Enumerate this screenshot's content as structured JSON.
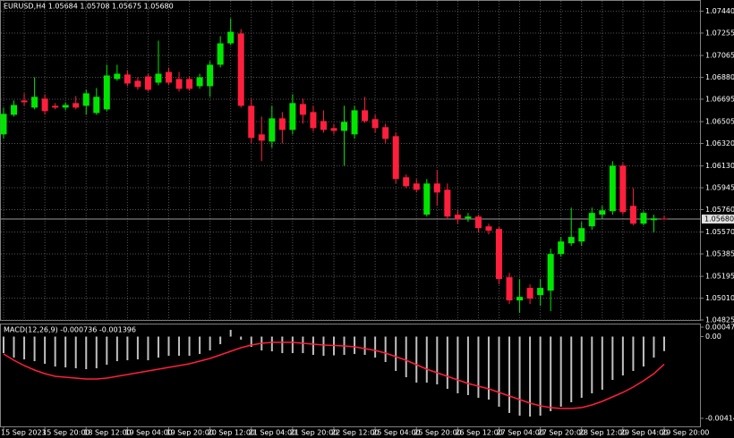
{
  "chart_data": [
    {
      "type": "candlestick",
      "title": "EURUSD,H4 1.05684 1.05708 1.05675 1.05680",
      "categories": [
        "15 Sep 2023",
        null,
        null,
        null,
        "15 Sep 20:00",
        null,
        null,
        null,
        "18 Sep 12:00",
        null,
        null,
        null,
        "19 Sep 04:00",
        null,
        null,
        null,
        "19 Sep 20:00",
        null,
        null,
        null,
        "20 Sep 12:00",
        null,
        null,
        null,
        "21 Sep 04:00",
        null,
        null,
        null,
        "21 Sep 20:00",
        null,
        null,
        null,
        "22 Sep 12:00",
        null,
        null,
        null,
        "25 Sep 04:00",
        null,
        null,
        null,
        "25 Sep 20:00",
        null,
        null,
        null,
        "26 Sep 12:00",
        null,
        null,
        null,
        "27 Sep 04:00",
        null,
        null,
        null,
        "27 Sep 20:00",
        null,
        null,
        null,
        "28 Sep 12:00",
        null,
        null,
        null,
        "29 Sep 04:00",
        null,
        null,
        null,
        "29 Sep 20:00"
      ],
      "open": [
        1.06397,
        1.06563,
        1.06684,
        1.06624,
        1.067,
        1.06639,
        1.06624,
        1.06662,
        1.06639,
        1.06578,
        1.06609,
        1.06866,
        1.06904,
        1.06851,
        1.06888,
        1.06835,
        1.06926,
        1.06866,
        1.06866,
        1.06805,
        1.06805,
        1.06987,
        1.07168,
        1.07251,
        1.06639,
        1.06397,
        1.06336,
        1.06533,
        1.06435,
        1.06654,
        1.06586,
        1.0651,
        1.0645,
        1.06427,
        1.06397,
        1.06601,
        1.06526,
        1.06458,
        1.06382,
        1.06034,
        1.05981,
        1.05717,
        1.05981,
        1.05928,
        1.05717,
        1.05686,
        1.05701,
        1.05618,
        1.05596,
        1.05187,
        1.04991,
        1.05097,
        1.05036,
        1.05074,
        1.05384,
        1.05475,
        1.0549,
        1.05618,
        1.05717,
        1.05747,
        1.06132,
        1.05792,
        1.05641,
        1.05671,
        1.05684
      ],
      "high": [
        1.06624,
        1.06684,
        1.06745,
        1.06881,
        1.06737,
        1.06662,
        1.06669,
        1.06722,
        1.06775,
        1.0679,
        1.06987,
        1.06987,
        1.06941,
        1.06881,
        1.06911,
        1.07191,
        1.06964,
        1.06926,
        1.06888,
        1.06911,
        1.07017,
        1.07229,
        1.0738,
        1.07289,
        1.067,
        1.06548,
        1.06639,
        1.06586,
        1.06737,
        1.067,
        1.06639,
        1.06601,
        1.06488,
        1.06639,
        1.06639,
        1.06715,
        1.06563,
        1.06488,
        1.06412,
        1.06057,
        1.06019,
        1.06019,
        1.06095,
        1.05981,
        1.05754,
        1.05732,
        1.05717,
        1.05641,
        1.05611,
        1.05225,
        1.05172,
        1.05127,
        1.05172,
        1.05429,
        1.05528,
        1.05777,
        1.05656,
        1.05777,
        1.05792,
        1.0617,
        1.06155,
        1.05943,
        1.05747,
        1.05717,
        1.05708
      ],
      "low": [
        1.06359,
        1.06548,
        1.06639,
        1.06609,
        1.06563,
        1.06609,
        1.06601,
        1.06609,
        1.06563,
        1.06563,
        1.06594,
        1.06851,
        1.06805,
        1.06775,
        1.0676,
        1.06813,
        1.06813,
        1.0676,
        1.06767,
        1.06783,
        1.06715,
        1.06964,
        1.07153,
        1.06624,
        1.06321,
        1.0617,
        1.06284,
        1.06321,
        1.06397,
        1.06488,
        1.0642,
        1.06412,
        1.06397,
        1.06132,
        1.06359,
        1.06495,
        1.06412,
        1.06321,
        1.05981,
        1.05943,
        1.05905,
        1.05701,
        1.05792,
        1.05679,
        1.05641,
        1.05656,
        1.05565,
        1.0555,
        1.05127,
        1.04961,
        1.04885,
        1.04961,
        1.04946,
        1.04901,
        1.05361,
        1.05452,
        1.05452,
        1.05588,
        1.05679,
        1.05717,
        1.05717,
        1.05626,
        1.05626,
        1.05565,
        1.05675
      ],
      "close": [
        1.06571,
        1.06646,
        1.06669,
        1.06715,
        1.06594,
        1.06624,
        1.06646,
        1.06624,
        1.06745,
        1.06715,
        1.06896,
        1.06911,
        1.06828,
        1.06798,
        1.06775,
        1.06911,
        1.06835,
        1.06783,
        1.06783,
        1.06881,
        1.06987,
        1.07168,
        1.07266,
        1.06639,
        1.06367,
        1.06344,
        1.06533,
        1.06435,
        1.06662,
        1.06563,
        1.0645,
        1.06435,
        1.06427,
        1.06503,
        1.06601,
        1.0651,
        1.0645,
        1.06359,
        1.06019,
        1.05958,
        1.05928,
        1.05981,
        1.05905,
        1.05701,
        1.05679,
        1.05701,
        1.05603,
        1.05581,
        1.05172,
        1.04991,
        1.05021,
        1.05006,
        1.05097,
        1.05384,
        1.0549,
        1.05528,
        1.05603,
        1.05732,
        1.05754,
        1.06132,
        1.05739,
        1.05641,
        1.05732,
        1.05686,
        1.0568
      ],
      "up_color": "#00e600",
      "down_color": "#ff1f3d",
      "ylim": [
        1.04825,
        1.0752
      ],
      "yticks": [
        {
          "value": 1.0744,
          "label": "1.07440"
        },
        1.07255,
        1.07065,
        {
          "value": 1.0688,
          "label": "1.06880"
        },
        1.06695,
        1.06505,
        {
          "value": 1.0632,
          "label": "1.06320"
        },
        {
          "value": 1.0613,
          "label": "1.06130"
        },
        1.05945,
        {
          "value": 1.0576,
          "label": "1.05760"
        },
        {
          "value": 1.0557,
          "label": "1.05570"
        },
        1.05385,
        1.05195,
        {
          "value": 1.0501,
          "label": "1.05010"
        },
        1.04825
      ],
      "current_price": {
        "value": 1.0568,
        "label": "1.05680"
      },
      "grid": true
    },
    {
      "type": "macd",
      "title": "MACD(12,26,9) -0.000736 -0.001396",
      "histogram": [
        -0.000838,
        -0.001064,
        -0.001155,
        -0.001245,
        -0.001381,
        -0.001517,
        -0.001562,
        -0.001607,
        -0.001653,
        -0.001607,
        -0.001426,
        -0.001245,
        -0.0012,
        -0.001155,
        -0.0012,
        -0.001064,
        -0.000974,
        -0.000974,
        -0.000974,
        -0.000883,
        -0.000702,
        -0.000385,
        0.00034,
        -0.000158,
        -0.000521,
        -0.000702,
        -0.000747,
        -0.000838,
        -0.000838,
        -0.000838,
        -0.000928,
        -0.000974,
        -0.00095,
        -0.000928,
        -0.000883,
        -0.000928,
        -0.001064,
        -0.00129,
        -0.001743,
        -0.00206,
        -0.002332,
        -0.002332,
        -0.002422,
        -0.002649,
        -0.002875,
        -0.002966,
        -0.003102,
        -0.003192,
        -0.003554,
        -0.003871,
        -0.004007,
        -0.004053,
        -0.004007,
        -0.003781,
        -0.003554,
        -0.003328,
        -0.003102,
        -0.002875,
        -0.002694,
        -0.002196,
        -0.00197,
        -0.001743,
        -0.001517,
        -0.001064,
        -0.000736
      ],
      "signal": [
        -0.000883,
        -0.0012,
        -0.001472,
        -0.001698,
        -0.001879,
        -0.002015,
        -0.002061,
        -0.002106,
        -0.002151,
        -0.002151,
        -0.002106,
        -0.002015,
        -0.001924,
        -0.001834,
        -0.001743,
        -0.001653,
        -0.001562,
        -0.001472,
        -0.001381,
        -0.001245,
        -0.001109,
        -0.000928,
        -0.000747,
        -0.000566,
        -0.00043,
        -0.00034,
        -0.000294,
        -0.000294,
        -0.000294,
        -0.00034,
        -0.000385,
        -0.00043,
        -0.000452,
        -0.000475,
        -0.000521,
        -0.000611,
        -0.000702,
        -0.000838,
        -0.001019,
        -0.0012,
        -0.001426,
        -0.001653,
        -0.001834,
        -0.002015,
        -0.002196,
        -0.002377,
        -0.002513,
        -0.002649,
        -0.00283,
        -0.003011,
        -0.003192,
        -0.003373,
        -0.003509,
        -0.0036,
        -0.003645,
        -0.003645,
        -0.0036,
        -0.003464,
        -0.003283,
        -0.003056,
        -0.00283,
        -0.002558,
        -0.002241,
        -0.001879,
        -0.001396
      ],
      "histogram_color": "#c0c0c0",
      "signal_color": "#ff1f3d",
      "ylim": [
        -0.004143,
        0.000477
      ],
      "yticks": [
        0.000477,
        {
          "value": 0,
          "label": "0.00"
        },
        -0.004143
      ]
    }
  ]
}
